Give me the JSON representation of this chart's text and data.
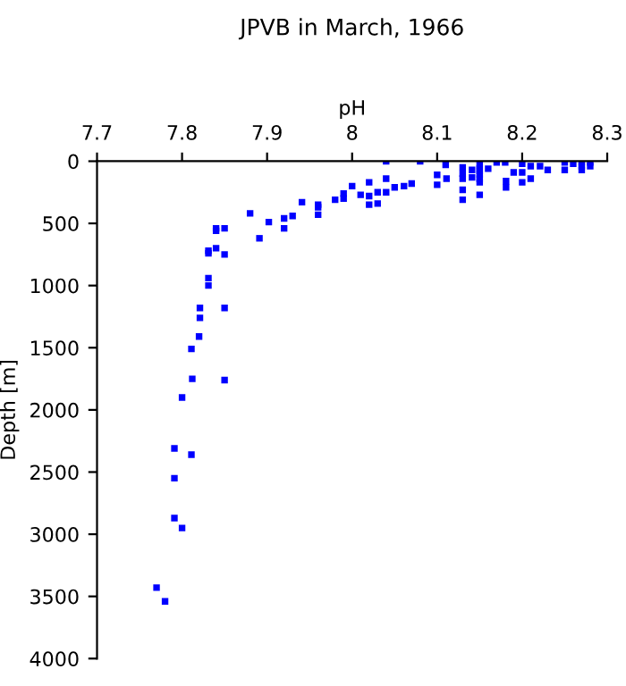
{
  "chart_data": {
    "type": "scatter",
    "title": "JPVB in March, 1966",
    "xlabel": "pH",
    "ylabel": "Depth [m]",
    "x": [
      7.77,
      7.78,
      7.791,
      7.8,
      7.791,
      7.791,
      7.811,
      7.8,
      7.812,
      7.85,
      7.811,
      7.82,
      7.821,
      7.821,
      7.85,
      7.831,
      7.831,
      7.831,
      7.831,
      7.84,
      7.85,
      7.84,
      7.84,
      7.85,
      7.88,
      7.891,
      7.902,
      7.92,
      7.92,
      7.93,
      7.941,
      7.96,
      7.96,
      7.96,
      7.98,
      7.99,
      7.99,
      8.0,
      8.01,
      8.02,
      8.02,
      8.02,
      8.03,
      8.03,
      8.04,
      8.04,
      8.05,
      8.061,
      8.07,
      8.04,
      8.08,
      8.11,
      8.1,
      8.1,
      8.111,
      8.13,
      8.13,
      8.13,
      8.13,
      8.13,
      8.141,
      8.141,
      8.15,
      8.15,
      8.15,
      8.15,
      8.15,
      8.15,
      8.15,
      8.16,
      8.17,
      8.18,
      8.181,
      8.181,
      8.19,
      8.2,
      8.2,
      8.2,
      8.21,
      8.21,
      8.221,
      8.23,
      8.25,
      8.25,
      8.26,
      8.27,
      8.27,
      8.27,
      8.28,
      8.28
    ],
    "values": [
      3430,
      3540,
      2870,
      2950,
      2550,
      2310,
      2360,
      1900,
      1750,
      1760,
      1510,
      1410,
      1260,
      1180,
      1180,
      1000,
      940,
      740,
      720,
      700,
      750,
      560,
      540,
      540,
      420,
      620,
      490,
      460,
      540,
      440,
      330,
      350,
      430,
      370,
      310,
      260,
      300,
      200,
      270,
      170,
      280,
      350,
      250,
      340,
      140,
      250,
      210,
      200,
      180,
      0,
      0,
      30,
      110,
      190,
      140,
      50,
      100,
      140,
      230,
      310,
      70,
      130,
      30,
      60,
      80,
      110,
      140,
      170,
      270,
      60,
      10,
      10,
      160,
      210,
      90,
      20,
      90,
      170,
      40,
      140,
      40,
      70,
      10,
      70,
      20,
      10,
      40,
      70,
      10,
      40
    ],
    "color": "#0000ff",
    "marker": "square",
    "xlim": [
      7.7,
      8.3
    ],
    "xticks": [
      7.7,
      7.8,
      7.9,
      8,
      8.1,
      8.2,
      8.3
    ],
    "ylim": [
      4000,
      0
    ],
    "yticks": [
      0,
      500,
      1000,
      1500,
      2000,
      2500,
      3000,
      3500,
      4000
    ],
    "grid": false,
    "legend": false
  }
}
